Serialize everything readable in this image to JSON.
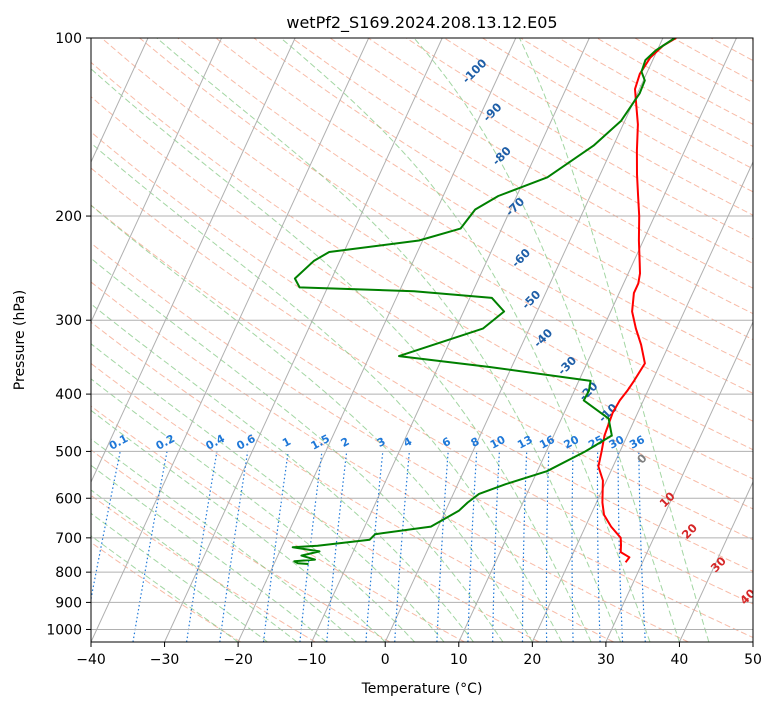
{
  "chart_data": {
    "type": "line",
    "title": "wetPf2_S169.2024.208.13.12.E05",
    "xlabel": "Temperature (°C)",
    "ylabel": "Pressure (hPa)",
    "xlim": [
      -40,
      50
    ],
    "ylim": [
      1050,
      100
    ],
    "y_scale": "log",
    "x_ticks": [
      "−40",
      "−30",
      "−20",
      "−10",
      "0",
      "10",
      "20",
      "30",
      "40",
      "50"
    ],
    "y_ticks": [
      "100",
      "200",
      "300",
      "400",
      "500",
      "600",
      "700",
      "800",
      "900",
      "1000"
    ],
    "grid": true,
    "colors": {
      "temperature": "#ff0000",
      "dewpoint": "#008000",
      "dry_adiabats": "#f5a48a",
      "moist_adiabats": "#7cc47c",
      "mixing_ratio": "#1f78d8",
      "isotherm_labels": "#1f5fa8",
      "warm_labels": "#d62728",
      "grid": "#b0b0b0"
    },
    "series": [
      {
        "name": "Temperature",
        "points": [
          [
            27.7,
            770
          ],
          [
            27.9,
            755
          ],
          [
            26.4,
            740
          ],
          [
            26.0,
            720
          ],
          [
            25.5,
            700
          ],
          [
            23.5,
            670
          ],
          [
            21.8,
            640
          ],
          [
            20.8,
            610
          ],
          [
            19.5,
            560
          ],
          [
            18.0,
            530
          ],
          [
            17.5,
            500
          ],
          [
            16.9,
            470
          ],
          [
            16.6,
            430
          ],
          [
            16.8,
            410
          ],
          [
            17.2,
            395
          ],
          [
            17.5,
            380
          ],
          [
            17.9,
            355
          ],
          [
            16.2,
            330
          ],
          [
            14.5,
            310
          ],
          [
            12.9,
            290
          ],
          [
            12.0,
            270
          ],
          [
            12.0,
            260
          ],
          [
            11.6,
            250
          ],
          [
            10.9,
            240
          ],
          [
            9.4,
            220
          ],
          [
            7.9,
            200
          ],
          [
            6.5,
            185
          ],
          [
            5.0,
            170
          ],
          [
            3.5,
            155
          ],
          [
            2.0,
            140
          ],
          [
            0.6,
            130
          ],
          [
            -0.6,
            122
          ],
          [
            -0.9,
            115
          ],
          [
            -0.5,
            108
          ],
          [
            0.5,
            103
          ],
          [
            1.8,
            100
          ]
        ]
      },
      {
        "name": "Dewpoint",
        "points": [
          [
            -15.3,
            775
          ],
          [
            -16.8,
            773
          ],
          [
            -17.4,
            767
          ],
          [
            -14.7,
            762
          ],
          [
            -16.8,
            750
          ],
          [
            -14.6,
            738
          ],
          [
            -18.5,
            726
          ],
          [
            -15.2,
            722
          ],
          [
            -8.5,
            705
          ],
          [
            -8.1,
            690
          ],
          [
            -1.0,
            670
          ],
          [
            1.8,
            630
          ],
          [
            2.5,
            610
          ],
          [
            3.5,
            590
          ],
          [
            6.5,
            568
          ],
          [
            11.3,
            540
          ],
          [
            15.3,
            500
          ],
          [
            17.9,
            470
          ],
          [
            16.4,
            440
          ],
          [
            11.9,
            410
          ],
          [
            12.0,
            395
          ],
          [
            11.6,
            380
          ],
          [
            -3.0,
            360
          ],
          [
            -16.0,
            345
          ],
          [
            -6.3,
            310
          ],
          [
            -4.5,
            290
          ],
          [
            -7.0,
            275
          ],
          [
            -18.0,
            268
          ],
          [
            -33.8,
            264
          ],
          [
            -35.0,
            255
          ],
          [
            -33.5,
            238
          ],
          [
            -32.0,
            230
          ],
          [
            -20.5,
            220
          ],
          [
            -15.6,
            210
          ],
          [
            -14.8,
            195
          ],
          [
            -12.5,
            185
          ],
          [
            -7.0,
            172
          ],
          [
            -2.7,
            152
          ],
          [
            -0.5,
            138
          ],
          [
            0.3,
            124
          ],
          [
            0.2,
            118
          ],
          [
            -0.8,
            114
          ],
          [
            -1.0,
            109
          ],
          [
            -0.2,
            105
          ],
          [
            1.6,
            100
          ]
        ]
      }
    ],
    "isotherm_labels": [
      "-100",
      "-90",
      "-80",
      "-70",
      "-60",
      "-50",
      "-40",
      "-30",
      "-20",
      "-10",
      "0",
      "10",
      "20",
      "30",
      "40"
    ],
    "mixing_ratio_labels": [
      "0.1",
      "0.2",
      "0.4",
      "0.6",
      "1",
      "1.5",
      "2",
      "3",
      "4",
      "6",
      "8",
      "10",
      "13",
      "16",
      "20",
      "25",
      "30",
      "36"
    ]
  }
}
